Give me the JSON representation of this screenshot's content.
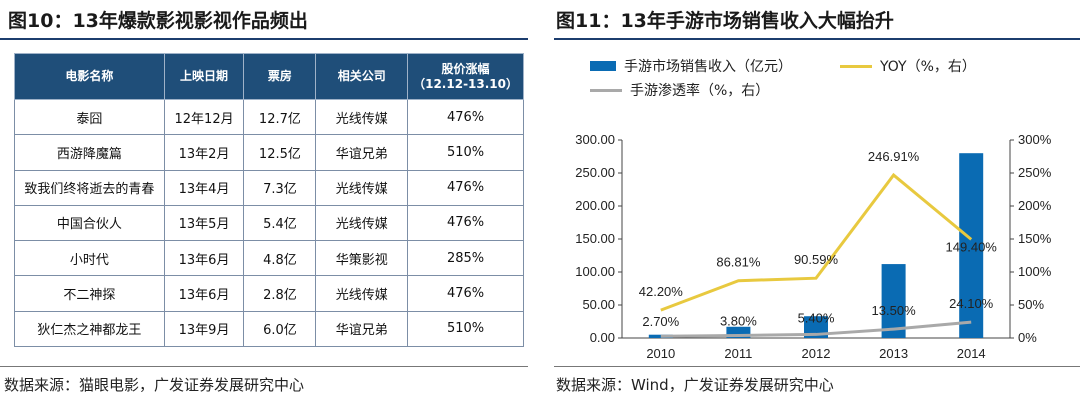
{
  "figure10": {
    "title": "图10：13年爆款影视影视作品频出",
    "columns": [
      "电影名称",
      "上映日期",
      "票房",
      "相关公司",
      "股价涨幅",
      "（12.12-13.10）"
    ],
    "rows": [
      {
        "name": "泰囧",
        "date": "12年12月",
        "box": "12.7亿",
        "company": "光线传媒",
        "gain": "476%"
      },
      {
        "name": "西游降魔篇",
        "date": "13年2月",
        "box": "12.5亿",
        "company": "华谊兄弟",
        "gain": "510%"
      },
      {
        "name": "致我们终将逝去的青春",
        "date": "13年4月",
        "box": "7.3亿",
        "company": "光线传媒",
        "gain": "476%"
      },
      {
        "name": "中国合伙人",
        "date": "13年5月",
        "box": "5.4亿",
        "company": "光线传媒",
        "gain": "476%"
      },
      {
        "name": "小时代",
        "date": "13年6月",
        "box": "4.8亿",
        "company": "华策影视",
        "gain": "285%"
      },
      {
        "name": "不二神探",
        "date": "13年6月",
        "box": "2.8亿",
        "company": "光线传媒",
        "gain": "476%"
      },
      {
        "name": "狄仁杰之神都龙王",
        "date": "13年9月",
        "box": "6.0亿",
        "company": "华谊兄弟",
        "gain": "510%"
      }
    ],
    "source": "数据来源：猫眼电影，广发证券发展研究中心"
  },
  "figure11": {
    "title": "图11：13年手游市场销售收入大幅抬升",
    "source": "数据来源：Wind，广发证券发展研究中心"
  },
  "chart_data": {
    "type": "bar",
    "categories": [
      "2010",
      "2011",
      "2012",
      "2013",
      "2014"
    ],
    "series": [
      {
        "name": "手游市场销售收入（亿元）",
        "type": "bar",
        "axis": "left",
        "color": "#0a6bb3",
        "values": [
          5.0,
          17.0,
          33.0,
          112.0,
          280.0
        ]
      },
      {
        "name": "YOY（%，右）",
        "type": "line",
        "axis": "right",
        "color": "#e8c93f",
        "values": [
          42.2,
          86.81,
          90.59,
          246.91,
          149.4
        ],
        "labels": [
          "42.20%",
          "86.81%",
          "90.59%",
          "246.91%",
          "149.40%"
        ]
      },
      {
        "name": "手游渗透率（%，右）",
        "type": "line",
        "axis": "right",
        "color": "#a9a9a9",
        "values": [
          2.7,
          3.8,
          5.4,
          13.5,
          24.1
        ],
        "labels": [
          "2.70%",
          "3.80%",
          "5.40%",
          "13.50%",
          "24.10%"
        ]
      }
    ],
    "ylim": [
      0,
      300
    ],
    "y2lim": [
      0,
      300
    ],
    "yticks": [
      "0.00",
      "50.00",
      "100.00",
      "150.00",
      "200.00",
      "250.00",
      "300.00"
    ],
    "y2ticks": [
      "0%",
      "50%",
      "100%",
      "150%",
      "200%",
      "250%",
      "300%"
    ],
    "grid": false,
    "legend": "top"
  }
}
